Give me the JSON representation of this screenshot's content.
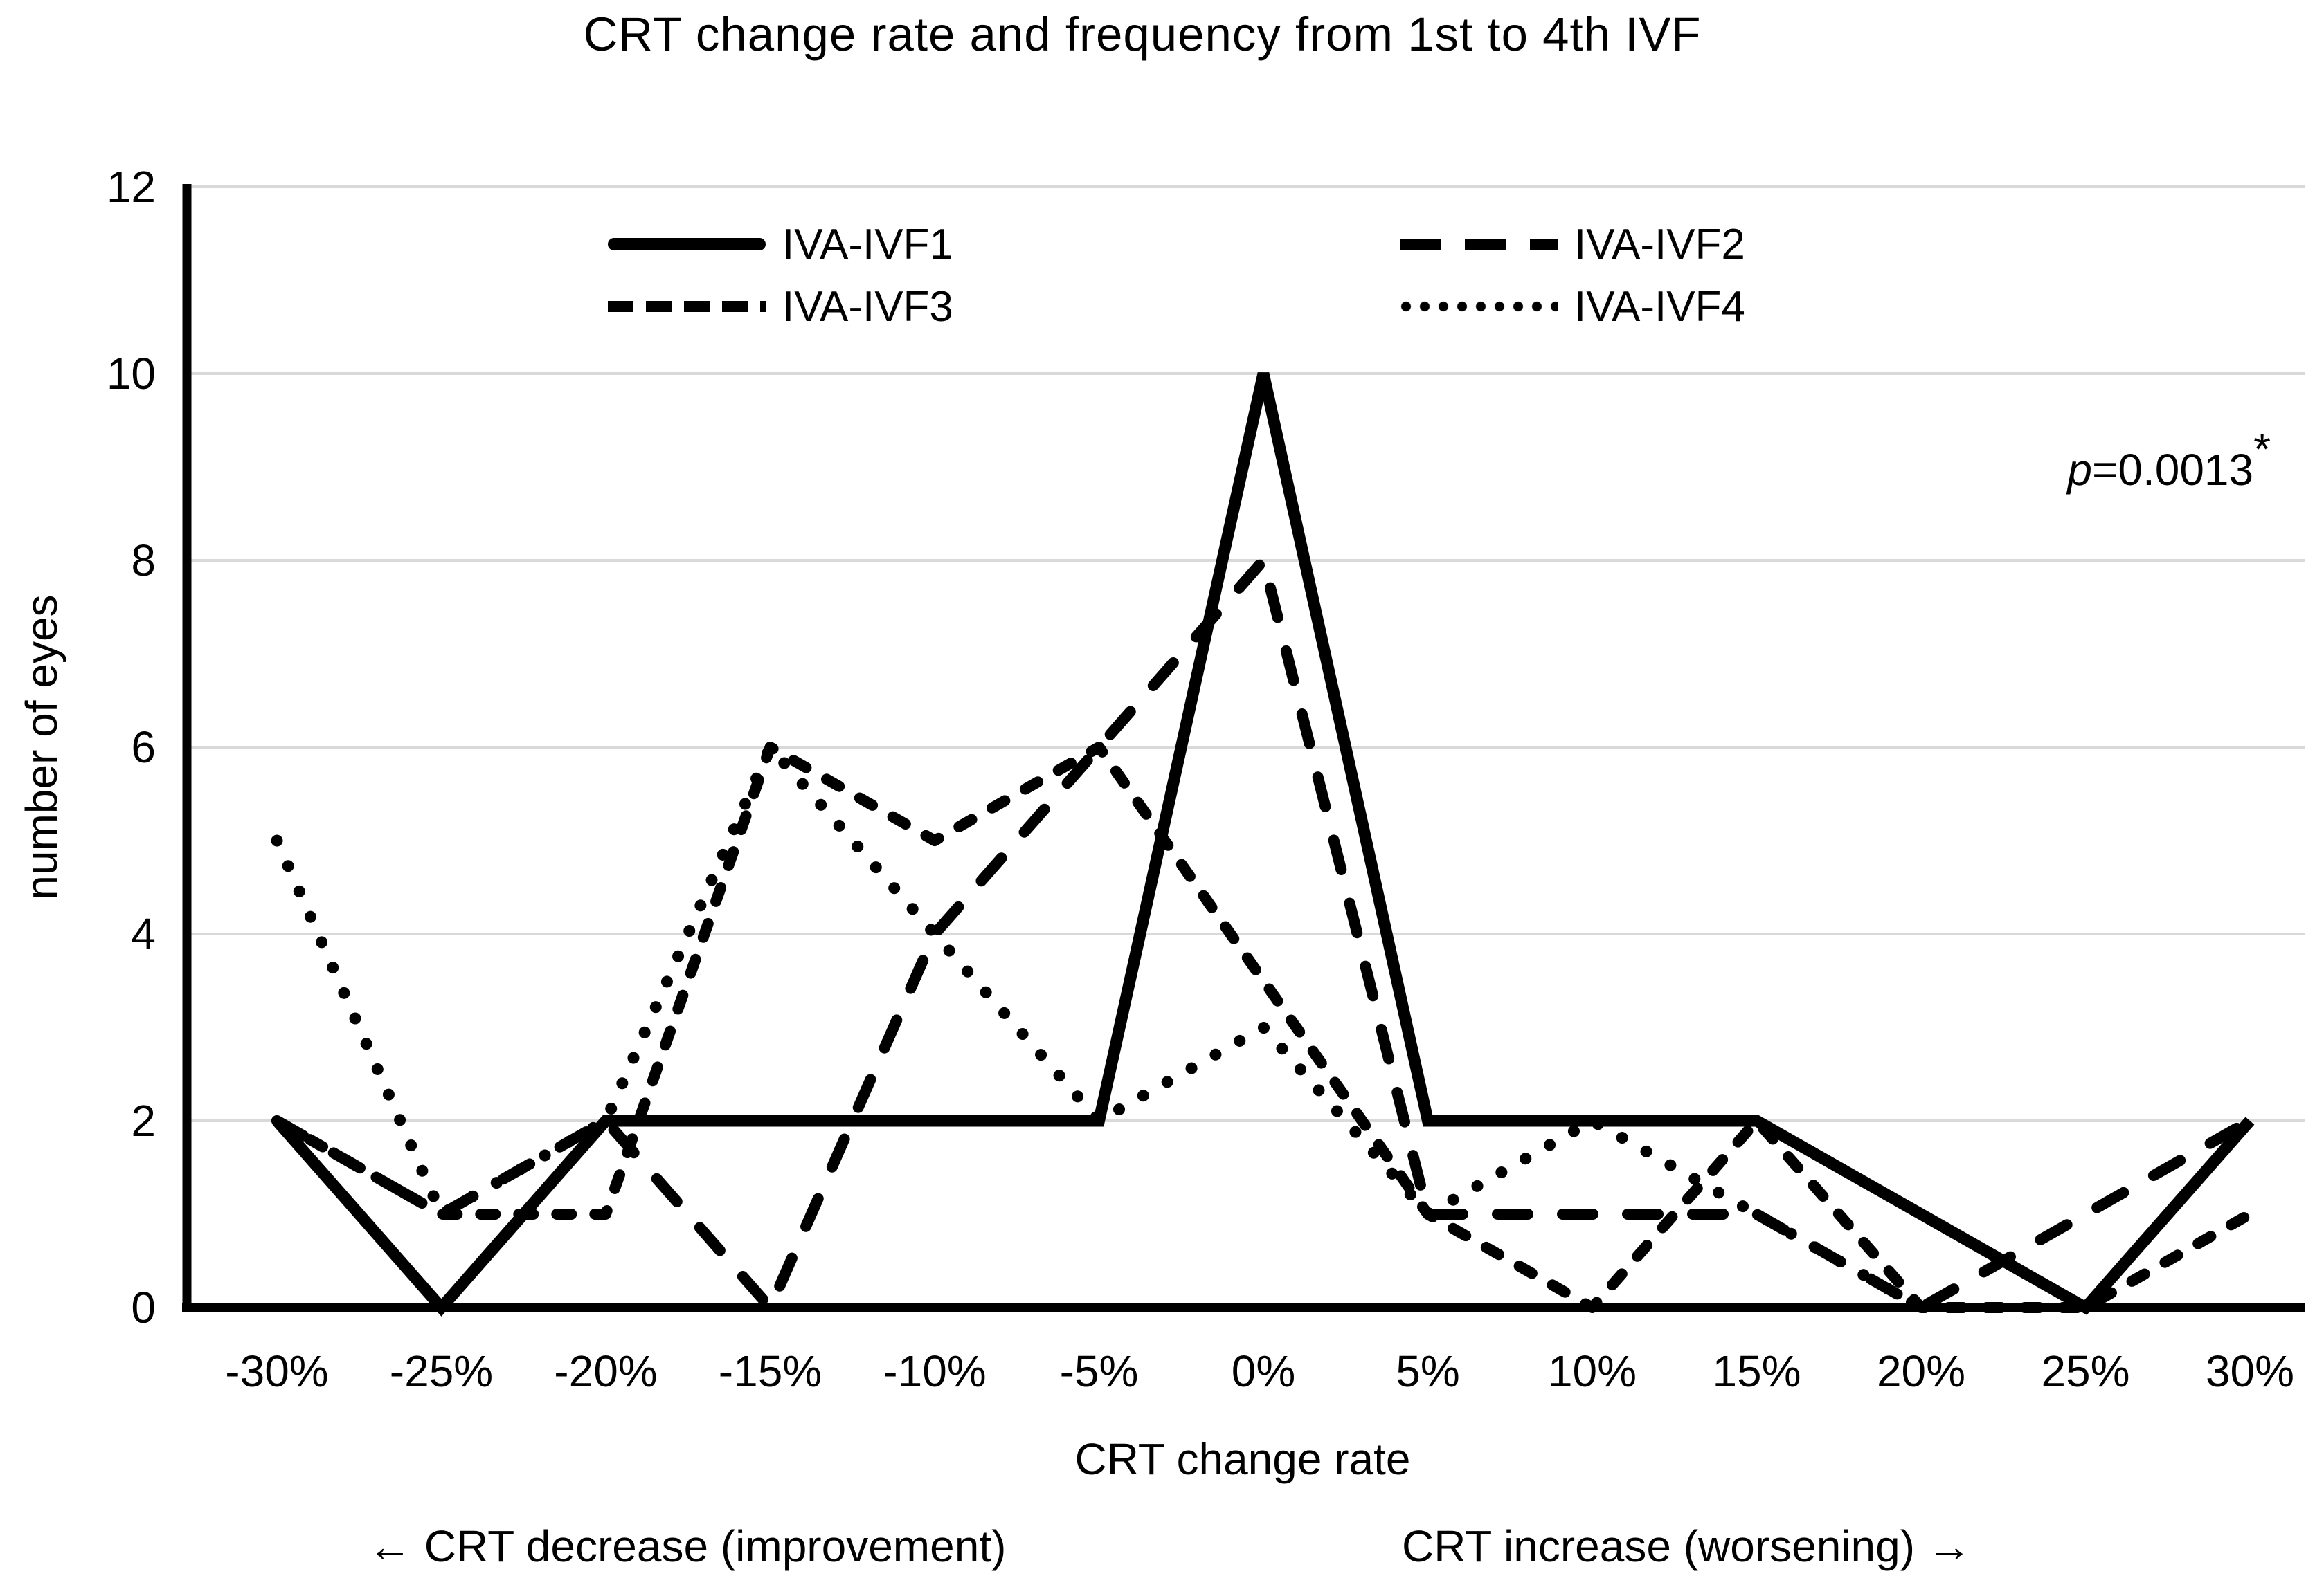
{
  "title": "CRT change rate and frequency from 1st to 4th IVF",
  "p_annotation": {
    "pvar": "p",
    "value": "=0.0013",
    "asterisk": "*"
  },
  "footnotes": {
    "left": "← CRT decrease (improvement)",
    "right": "CRT increase (worsening) →"
  },
  "chart_data": {
    "type": "line",
    "title": "CRT change rate and frequency from 1st to 4th IVF",
    "xlabel": "CRT change rate",
    "ylabel": "number of eyes",
    "ylim": [
      0,
      12
    ],
    "ytick_step": 2,
    "grid": "horizontal-major-only",
    "legend_position": "top-inside, 2 columns",
    "categories": [
      "-30%",
      "-25%",
      "-20%",
      "-15%",
      "-10%",
      "-5%",
      "0%",
      "5%",
      "10%",
      "15%",
      "20%",
      "25%",
      "30%"
    ],
    "series": [
      {
        "name": "IVA-IVF1",
        "style": "solid",
        "values": [
          2,
          0,
          2,
          2,
          2,
          2,
          10,
          2,
          2,
          2,
          1,
          0,
          2
        ]
      },
      {
        "name": "IVA-IVF2",
        "style": "long-dash",
        "values": [
          2,
          1,
          2,
          0,
          4,
          6,
          8,
          1,
          1,
          1,
          0,
          1,
          2
        ]
      },
      {
        "name": "IVA-IVF3",
        "style": "short-dash",
        "values": [
          2,
          1,
          1,
          6,
          5,
          6,
          3.5,
          1,
          0,
          2,
          0,
          0,
          1
        ]
      },
      {
        "name": "IVA-IVF4",
        "style": "dotted",
        "values": [
          5,
          1,
          2,
          6,
          4,
          2,
          3,
          1,
          2,
          1,
          0,
          null,
          null
        ]
      }
    ]
  },
  "colors": {
    "line": "#000000",
    "grid": "#d9d9d9",
    "background": "#ffffff",
    "text": "#000000"
  }
}
